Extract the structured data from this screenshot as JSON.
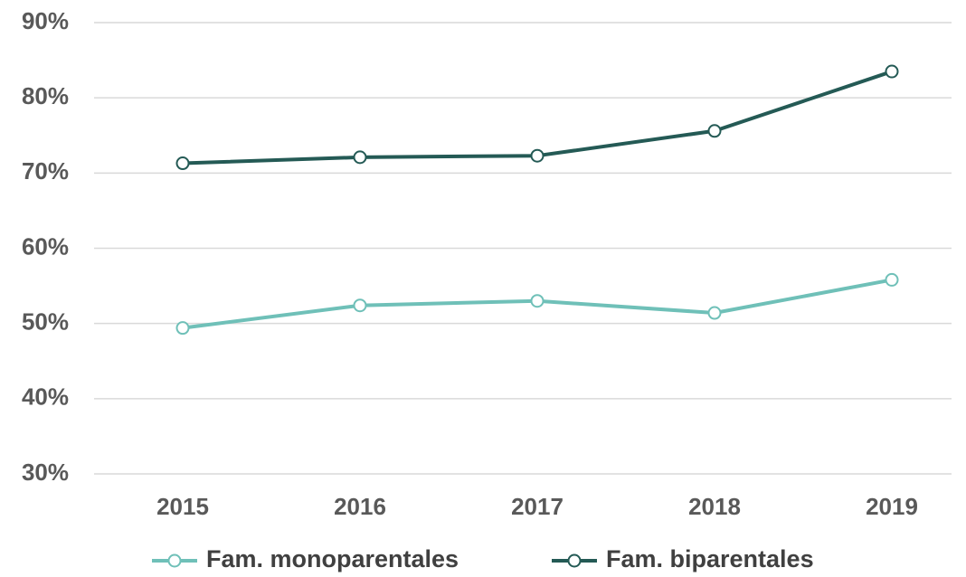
{
  "chart_data": {
    "type": "line",
    "categories": [
      "2015",
      "2016",
      "2017",
      "2018",
      "2019"
    ],
    "series": [
      {
        "name": "Fam. monoparentales",
        "color": "#6fc0b8",
        "values": [
          49.4,
          52.4,
          53.0,
          51.4,
          55.8
        ]
      },
      {
        "name": "Fam. biparentales",
        "color": "#245a55",
        "values": [
          71.3,
          72.1,
          72.3,
          75.6,
          83.5
        ]
      }
    ],
    "ylim": [
      30,
      90
    ],
    "yticks": [
      {
        "value": 30,
        "label": "30%"
      },
      {
        "value": 40,
        "label": "40%"
      },
      {
        "value": 50,
        "label": "50%"
      },
      {
        "value": 60,
        "label": "60%"
      },
      {
        "value": 70,
        "label": "70%"
      },
      {
        "value": 80,
        "label": "80%"
      },
      {
        "value": 90,
        "label": "90%"
      }
    ],
    "grid": true,
    "legend": "bottom"
  }
}
